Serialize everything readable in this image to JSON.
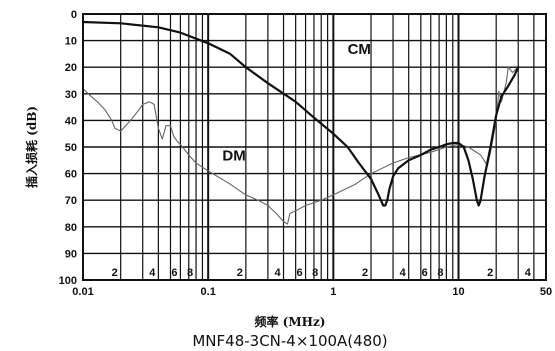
{
  "chart_data": {
    "type": "line",
    "title": "MNF48-3CN-4×100A(480)",
    "xlabel": "频率 (MHz)",
    "ylabel": "插入损耗 (dB)",
    "x_scale": "log",
    "xlim": [
      0.01,
      50
    ],
    "ylim": [
      0,
      100
    ],
    "y_inverted": true,
    "grid": true,
    "x_major_ticks": [
      {
        "value": 0.01,
        "label": "0.01"
      },
      {
        "value": 0.1,
        "label": "0.1"
      },
      {
        "value": 1,
        "label": "1"
      },
      {
        "value": 10,
        "label": "10"
      },
      {
        "value": 50,
        "label": "50"
      }
    ],
    "x_minor_ticks": [
      {
        "value": 0.02,
        "label": "2"
      },
      {
        "value": 0.03,
        "label": ""
      },
      {
        "value": 0.04,
        "label": "4"
      },
      {
        "value": 0.05,
        "label": ""
      },
      {
        "value": 0.06,
        "label": "6"
      },
      {
        "value": 0.07,
        "label": ""
      },
      {
        "value": 0.08,
        "label": "8"
      },
      {
        "value": 0.09,
        "label": ""
      },
      {
        "value": 0.2,
        "label": "2"
      },
      {
        "value": 0.3,
        "label": ""
      },
      {
        "value": 0.4,
        "label": "4"
      },
      {
        "value": 0.5,
        "label": ""
      },
      {
        "value": 0.6,
        "label": "6"
      },
      {
        "value": 0.7,
        "label": ""
      },
      {
        "value": 0.8,
        "label": "8"
      },
      {
        "value": 0.9,
        "label": ""
      },
      {
        "value": 2,
        "label": "2"
      },
      {
        "value": 3,
        "label": ""
      },
      {
        "value": 4,
        "label": "4"
      },
      {
        "value": 5,
        "label": ""
      },
      {
        "value": 6,
        "label": "6"
      },
      {
        "value": 7,
        "label": ""
      },
      {
        "value": 8,
        "label": "8"
      },
      {
        "value": 9,
        "label": ""
      },
      {
        "value": 20,
        "label": "2"
      },
      {
        "value": 30,
        "label": ""
      },
      {
        "value": 40,
        "label": "4"
      }
    ],
    "y_ticks": [
      0,
      10,
      20,
      30,
      40,
      50,
      60,
      70,
      80,
      90,
      100
    ],
    "series": [
      {
        "name": "CM",
        "color": "#111111",
        "width": 2.2,
        "x": [
          0.01,
          0.02,
          0.04,
          0.06,
          0.1,
          0.15,
          0.2,
          0.3,
          0.5,
          0.7,
          1,
          1.3,
          1.6,
          2,
          2.3,
          2.5,
          2.6,
          2.7,
          2.8,
          3,
          3.3,
          4,
          5,
          6,
          7,
          8,
          9,
          10,
          11,
          12,
          13,
          14,
          14.5,
          15,
          16,
          18,
          20,
          22,
          25,
          28,
          30
        ],
        "y": [
          3,
          3.5,
          5,
          7,
          11,
          15,
          20,
          26,
          33,
          39,
          45,
          50,
          56,
          62,
          68,
          72,
          72,
          70,
          66,
          61,
          58,
          55,
          53,
          51,
          50,
          49,
          48.5,
          48.5,
          50,
          55,
          62,
          70,
          72,
          70,
          62,
          50,
          38,
          31,
          27,
          23,
          20
        ]
      },
      {
        "name": "DM",
        "color": "#666666",
        "width": 1.1,
        "x": [
          0.01,
          0.011,
          0.013,
          0.015,
          0.017,
          0.018,
          0.02,
          0.024,
          0.028,
          0.03,
          0.034,
          0.037,
          0.04,
          0.043,
          0.046,
          0.05,
          0.053,
          0.057,
          0.06,
          0.07,
          0.08,
          0.1,
          0.15,
          0.2,
          0.25,
          0.3,
          0.35,
          0.4,
          0.43,
          0.45,
          0.5,
          0.6,
          0.8,
          1,
          1.5,
          2,
          3,
          4,
          6,
          8,
          10,
          12,
          15,
          17,
          18,
          20,
          21,
          22,
          24,
          25,
          27,
          30
        ],
        "y": [
          28,
          30,
          33,
          36,
          40,
          43,
          44,
          40,
          36,
          34,
          33,
          34,
          43,
          47,
          42,
          42,
          46,
          48,
          49,
          53,
          56,
          59,
          64,
          68,
          70,
          72,
          75,
          78,
          79,
          75,
          74,
          72,
          70,
          68,
          64,
          60,
          56,
          54,
          52,
          50,
          49,
          50,
          53,
          57,
          52,
          40,
          29,
          33,
          26,
          20,
          22,
          20
        ]
      }
    ],
    "annotations": [
      {
        "text": "CM",
        "x": 1.3,
        "y": 15
      },
      {
        "text": "DM",
        "x": 0.13,
        "y": 55
      }
    ]
  }
}
